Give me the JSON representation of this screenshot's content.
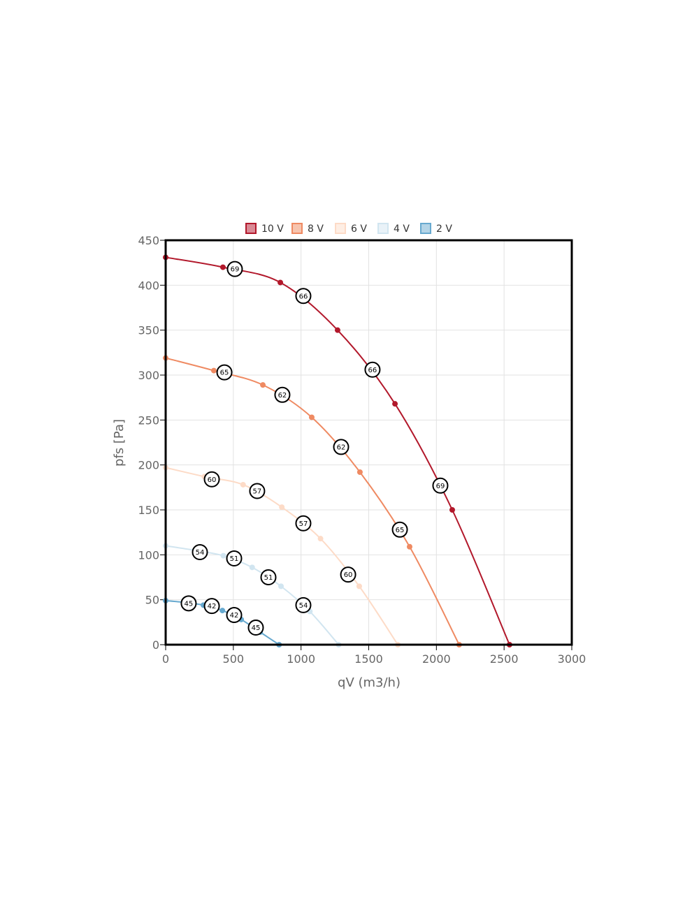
{
  "chart_data": {
    "type": "line",
    "title": "",
    "xlabel": "qV (m3/h)",
    "ylabel": "pfs [Pa]",
    "xlim": [
      0,
      3000
    ],
    "ylim": [
      0,
      450
    ],
    "xticks": [
      0,
      500,
      1000,
      1500,
      2000,
      2500,
      3000
    ],
    "yticks": [
      0,
      50,
      100,
      150,
      200,
      250,
      300,
      350,
      400,
      450
    ],
    "grid": true,
    "legend_position": "top-center",
    "series": [
      {
        "name": "10 V",
        "color": "#b2182b",
        "fill": "#d98a95",
        "x": [
          0,
          423,
          847,
          1270,
          1694,
          2117,
          2540
        ],
        "y": [
          431,
          420,
          403,
          350,
          268,
          150,
          0
        ],
        "annotations": [
          {
            "x": 511,
            "y": 418,
            "text": "69"
          },
          {
            "x": 1017,
            "y": 388,
            "text": "66"
          },
          {
            "x": 1528,
            "y": 306,
            "text": "66"
          },
          {
            "x": 2029,
            "y": 177,
            "text": "69"
          }
        ]
      },
      {
        "name": "8 V",
        "color": "#ef8a62",
        "fill": "#f7c4ae",
        "x": [
          0,
          356,
          718,
          1079,
          1435,
          1802,
          2168
        ],
        "y": [
          319,
          305,
          289,
          253,
          192,
          109,
          0
        ],
        "annotations": [
          {
            "x": 434,
            "y": 303,
            "text": "65"
          },
          {
            "x": 862,
            "y": 278,
            "text": "62"
          },
          {
            "x": 1296,
            "y": 220,
            "text": "62"
          },
          {
            "x": 1730,
            "y": 128,
            "text": "65"
          }
        ]
      },
      {
        "name": "6 V",
        "color": "#fddbc7",
        "fill": "#feeee4",
        "x": [
          0,
          286,
          572,
          858,
          1144,
          1430,
          1715
        ],
        "y": [
          197,
          187,
          178,
          153,
          118,
          65,
          0
        ],
        "annotations": [
          {
            "x": 341,
            "y": 184,
            "text": "60"
          },
          {
            "x": 676,
            "y": 171,
            "text": "57"
          },
          {
            "x": 1017,
            "y": 135,
            "text": "57"
          },
          {
            "x": 1348,
            "y": 78,
            "text": "60"
          }
        ]
      },
      {
        "name": "4 V",
        "color": "#d1e5f0",
        "fill": "#e9f2f8",
        "x": [
          0,
          213,
          426,
          639,
          852,
          1065,
          1278
        ],
        "y": [
          110,
          105,
          99,
          86,
          65,
          37,
          0
        ],
        "annotations": [
          {
            "x": 253,
            "y": 103,
            "text": "54"
          },
          {
            "x": 506,
            "y": 96,
            "text": "51"
          },
          {
            "x": 759,
            "y": 75,
            "text": "51"
          },
          {
            "x": 1017,
            "y": 44,
            "text": "54"
          }
        ]
      },
      {
        "name": "2 V",
        "color": "#67a9cf",
        "fill": "#b3d4e7",
        "x": [
          0,
          140,
          279,
          419,
          558,
          698,
          838
        ],
        "y": [
          49,
          47,
          44,
          38,
          28,
          14,
          0
        ],
        "annotations": [
          {
            "x": 170,
            "y": 46,
            "text": "45"
          },
          {
            "x": 341,
            "y": 43,
            "text": "42"
          },
          {
            "x": 506,
            "y": 33,
            "text": "42"
          },
          {
            "x": 666,
            "y": 19,
            "text": "45"
          }
        ]
      }
    ]
  }
}
